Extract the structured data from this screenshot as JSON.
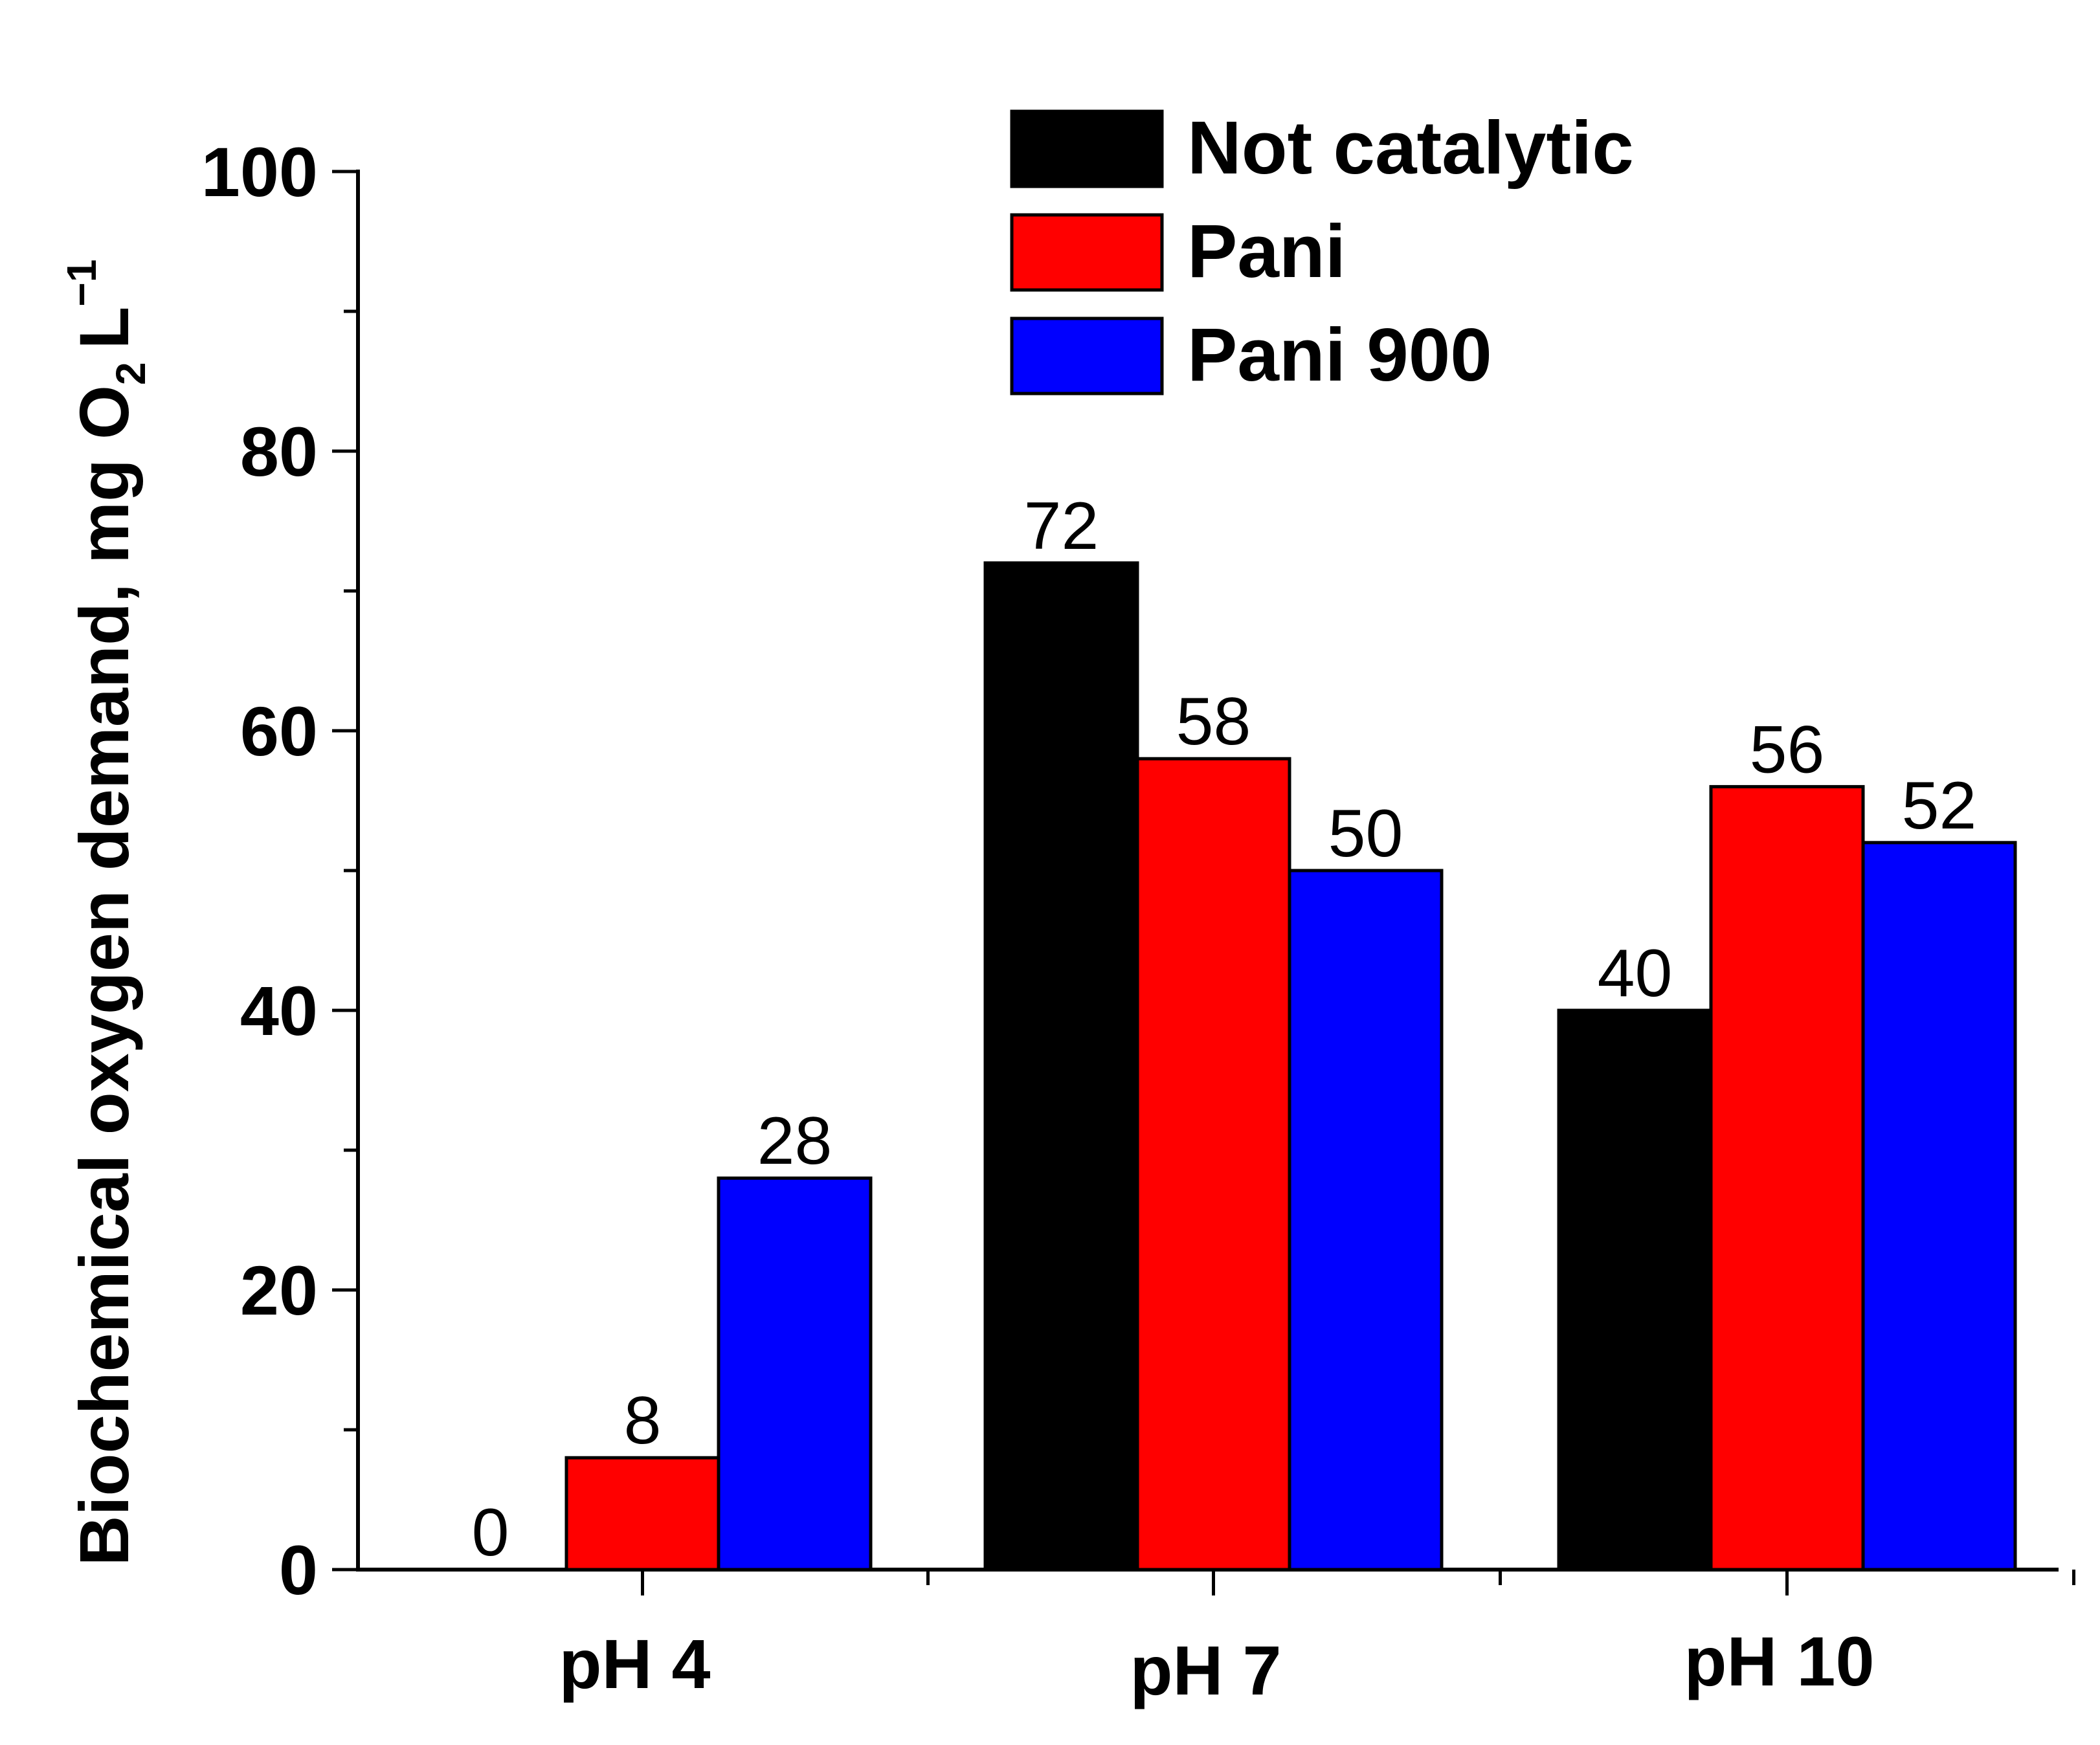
{
  "chart_data": {
    "type": "bar",
    "title": "",
    "xlabel": "",
    "ylabel": {
      "main": "Biochemical oxygen demand, mg O",
      "subscript": "2",
      "unit": "L",
      "superscript": "−1"
    },
    "categories": [
      "pH 4",
      "pH 7",
      "pH 10"
    ],
    "series": [
      {
        "name": "Not catalytic",
        "color": "#000000",
        "values": [
          0,
          72,
          40
        ],
        "labels": [
          "0",
          "72",
          "40"
        ]
      },
      {
        "name": "Pani",
        "color": "#ff0000",
        "values": [
          8,
          58,
          56
        ],
        "labels": [
          "8",
          "58",
          "56"
        ]
      },
      {
        "name": "Pani 900",
        "color": "#0000ff",
        "values": [
          28,
          50,
          52
        ],
        "labels": [
          "28",
          "50",
          "52"
        ]
      }
    ],
    "ylim": [
      0,
      100
    ],
    "yticks": [
      0,
      20,
      40,
      60,
      80,
      100
    ],
    "ytick_labels": [
      "0",
      "20",
      "40",
      "60",
      "80",
      "100"
    ],
    "grid": false,
    "legend_position": "top-right"
  }
}
